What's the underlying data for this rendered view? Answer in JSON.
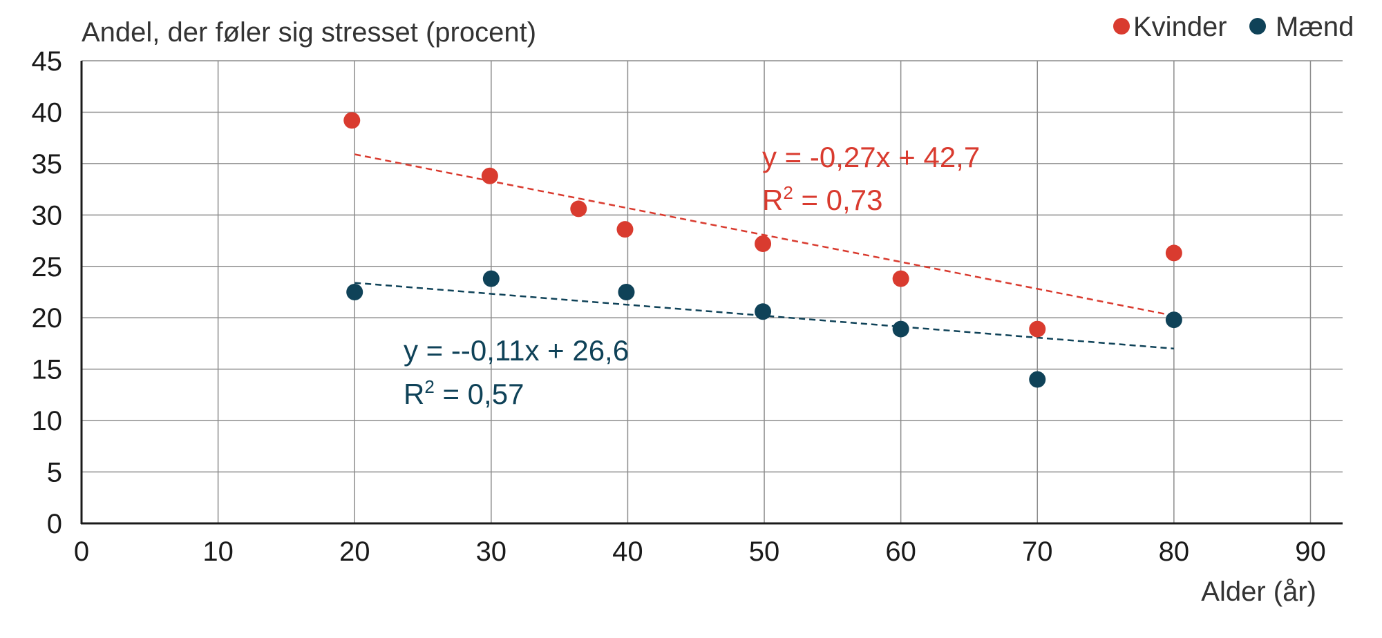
{
  "chart_data": {
    "type": "scatter",
    "ylabel": "Andel, der føler sig stresset (procent)",
    "xlabel": "Alder (år)",
    "xlim": [
      0,
      92
    ],
    "ylim": [
      0,
      45
    ],
    "x_ticks": [
      0,
      10,
      20,
      30,
      40,
      50,
      60,
      70,
      80,
      90
    ],
    "y_ticks": [
      0,
      5,
      10,
      15,
      20,
      25,
      30,
      35,
      40,
      45
    ],
    "x_tick_labels": [
      "0",
      "10",
      "20",
      "30",
      "40",
      "50",
      "60",
      "70",
      "80",
      "90"
    ],
    "y_tick_labels": [
      "0",
      "5",
      "10",
      "15",
      "20",
      "25",
      "30",
      "35",
      "40",
      "45"
    ],
    "grid": true,
    "legend_position": "top-right",
    "series": [
      {
        "name": "Kvinder",
        "color": "#d93b2f",
        "points": [
          {
            "x": 19.8,
            "y": 39.2
          },
          {
            "x": 29.9,
            "y": 33.8
          },
          {
            "x": 36.4,
            "y": 30.6
          },
          {
            "x": 39.8,
            "y": 28.6
          },
          {
            "x": 49.9,
            "y": 27.2
          },
          {
            "x": 60.0,
            "y": 23.8
          },
          {
            "x": 70.0,
            "y": 18.9
          },
          {
            "x": 80.0,
            "y": 26.3
          }
        ],
        "trend": {
          "x": [
            20,
            80
          ],
          "y": [
            35.9,
            20.2
          ]
        },
        "equation": "y = -0,27x + 42,7",
        "r2_prefix": "R",
        "r2_exp": "2",
        "r2_value": " = 0,73"
      },
      {
        "name": "Mænd",
        "color": "#0f4258",
        "points": [
          {
            "x": 20.0,
            "y": 22.5
          },
          {
            "x": 30.0,
            "y": 23.8
          },
          {
            "x": 39.9,
            "y": 22.5
          },
          {
            "x": 49.9,
            "y": 20.6
          },
          {
            "x": 60.0,
            "y": 18.9
          },
          {
            "x": 70.0,
            "y": 14.0
          },
          {
            "x": 80.0,
            "y": 19.8
          }
        ],
        "trend": {
          "x": [
            20,
            80
          ],
          "y": [
            23.4,
            17.0
          ]
        },
        "equation": "y = --0,11x + 26,6",
        "r2_prefix": "R",
        "r2_exp": "2",
        "r2_value": " = 0,57"
      }
    ]
  }
}
